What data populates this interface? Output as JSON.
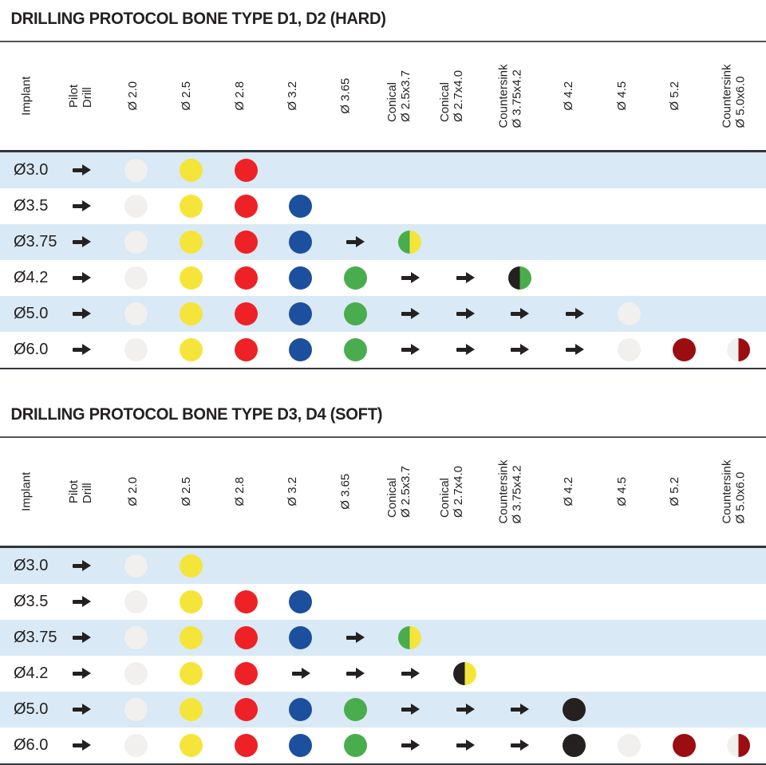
{
  "colors": {
    "row_stripe": "#d9e9f5",
    "ink": "#242120",
    "white": "#f1f0ee",
    "yellow": "#f5e53a",
    "red": "#ee2126",
    "blue": "#1c4f9d",
    "green": "#49ad4d",
    "black": "#242120",
    "darkred": "#9b0d10"
  },
  "columns": [
    "Implant",
    "Pilot\nDrill",
    "Ø 2.0",
    "Ø 2.5",
    "Ø 2.8",
    "Ø 3.2",
    "Ø 3.65",
    "Conical\nØ 2.5x3.7",
    "Conical\nØ 2.7x4.0",
    "Countersink\nØ 3.75x4.2",
    "Ø 4.2",
    "Ø 4.5",
    "Ø 5.2",
    "Countersink\nØ 5.0x6.0"
  ],
  "tables": [
    {
      "title": "DRILLING PROTOCOL BONE TYPE D1, D2 (HARD)",
      "rows": [
        {
          "implant": "Ø3.0",
          "cells": [
            "arrow",
            "dot:white",
            "dot:yellow",
            "dot:red",
            "",
            "",
            "",
            "",
            "",
            "",
            "",
            "",
            ""
          ]
        },
        {
          "implant": "Ø3.5",
          "cells": [
            "arrow",
            "dot:white",
            "dot:yellow",
            "dot:red",
            "dot:blue",
            "",
            "",
            "",
            "",
            "",
            "",
            "",
            ""
          ]
        },
        {
          "implant": "Ø3.75",
          "cells": [
            "arrow",
            "dot:white",
            "dot:yellow",
            "dot:red",
            "dot:blue",
            "arrow",
            "half:green,yellow",
            "",
            "",
            "",
            "",
            "",
            ""
          ]
        },
        {
          "implant": "Ø4.2",
          "cells": [
            "arrow",
            "dot:white",
            "dot:yellow",
            "dot:red",
            "dot:blue",
            "dot:green",
            "arrow",
            "arrow",
            "half:black,green",
            "",
            "",
            "",
            ""
          ]
        },
        {
          "implant": "Ø5.0",
          "cells": [
            "arrow",
            "dot:white",
            "dot:yellow",
            "dot:red",
            "dot:blue",
            "dot:green",
            "arrow",
            "arrow",
            "arrow",
            "arrow",
            "dot:white",
            "",
            ""
          ]
        },
        {
          "implant": "Ø6.0",
          "cells": [
            "arrow",
            "dot:white",
            "dot:yellow",
            "dot:red",
            "dot:blue",
            "dot:green",
            "arrow",
            "arrow",
            "arrow",
            "arrow",
            "dot:white",
            "dot:darkred",
            "half:white,darkred"
          ]
        }
      ]
    },
    {
      "title": "DRILLING PROTOCOL BONE TYPE D3, D4 (SOFT)",
      "rows": [
        {
          "implant": "Ø3.0",
          "cells": [
            "arrow",
            "dot:white",
            "dot:yellow",
            "",
            "",
            "",
            "",
            "",
            "",
            "",
            "",
            "",
            ""
          ]
        },
        {
          "implant": "Ø3.5",
          "cells": [
            "arrow",
            "dot:white",
            "dot:yellow",
            "dot:red",
            "dot:blue",
            "",
            "",
            "",
            "",
            "",
            "",
            "",
            ""
          ]
        },
        {
          "implant": "Ø3.75",
          "cells": [
            "arrow",
            "dot:white",
            "dot:yellow",
            "dot:red",
            "dot:blue",
            "arrow",
            "half:green,yellow",
            "",
            "",
            "",
            "",
            "",
            ""
          ]
        },
        {
          "implant": "Ø4.2",
          "cells": [
            "arrow",
            "dot:white",
            "dot:yellow",
            "dot:red",
            "arrow",
            "arrow",
            "arrow",
            "half:black,yellow",
            "",
            "",
            "",
            "",
            ""
          ]
        },
        {
          "implant": "Ø5.0",
          "cells": [
            "arrow",
            "dot:white",
            "dot:yellow",
            "dot:red",
            "dot:blue",
            "dot:green",
            "arrow",
            "arrow",
            "arrow",
            "dot:black",
            "",
            "",
            ""
          ]
        },
        {
          "implant": "Ø6.0",
          "cells": [
            "arrow",
            "dot:white",
            "dot:yellow",
            "dot:red",
            "dot:blue",
            "dot:green",
            "arrow",
            "arrow",
            "arrow",
            "dot:black",
            "dot:white",
            "dot:darkred",
            "half:white,darkred"
          ]
        }
      ]
    }
  ]
}
